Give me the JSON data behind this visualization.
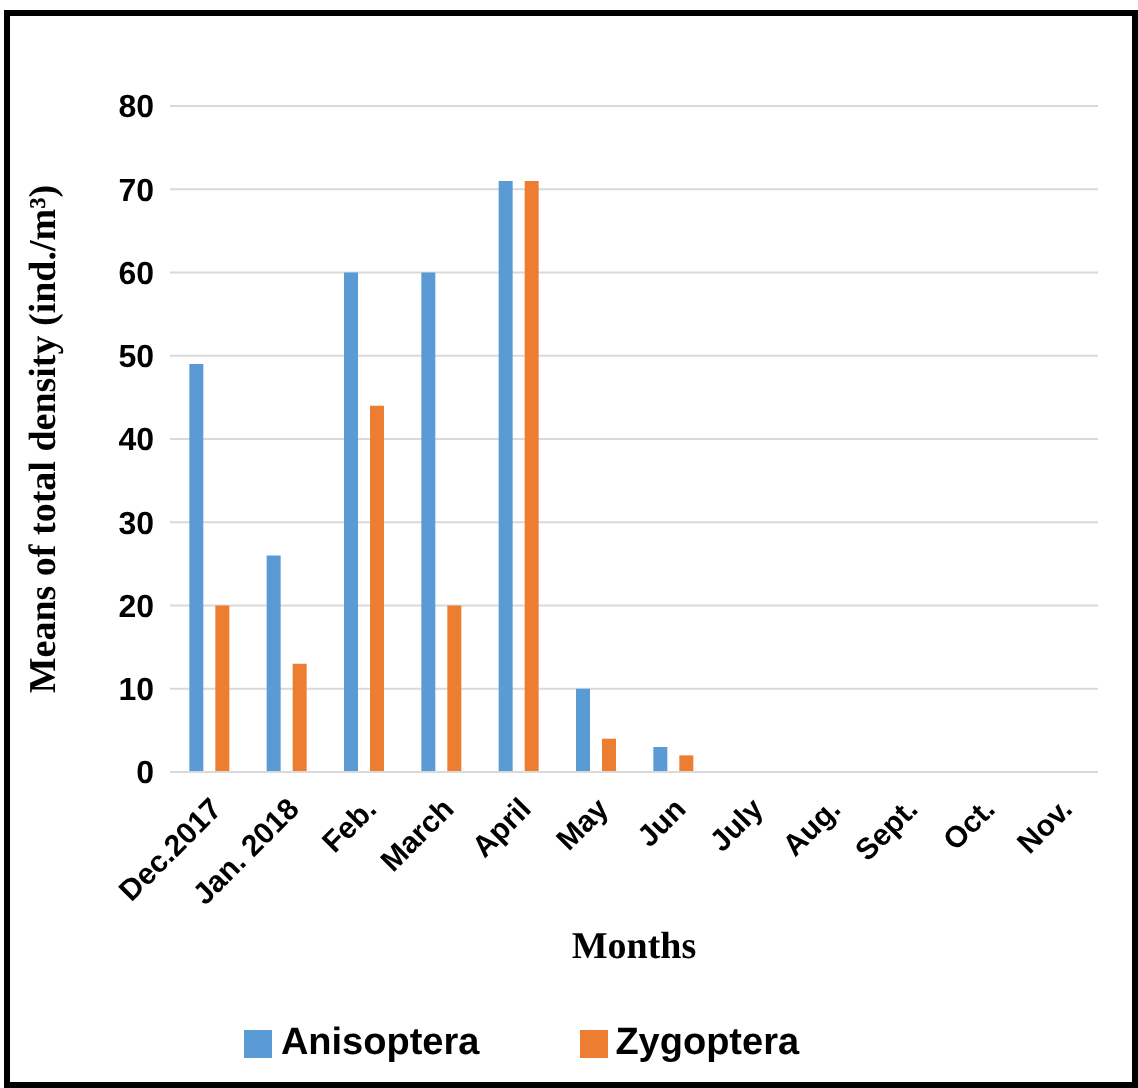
{
  "chart_data": {
    "type": "bar",
    "xlabel": "Months",
    "ylabel": "Means of total density (ind./m³)",
    "categories": [
      "Dec.2017",
      "Jan. 2018",
      "Feb.",
      "March",
      "April",
      "May",
      "Jun",
      "July",
      "Aug.",
      "Sept.",
      "Oct.",
      "Nov."
    ],
    "series": [
      {
        "name": "Anisoptera",
        "color": "#5b9bd5",
        "values": [
          49,
          26,
          60,
          60,
          71,
          10,
          3,
          0,
          0,
          0,
          0,
          0
        ]
      },
      {
        "name": "Zygoptera",
        "color": "#ed7d31",
        "values": [
          20,
          13,
          44,
          20,
          71,
          4,
          2,
          0,
          0,
          0,
          0,
          0
        ]
      }
    ],
    "ylim": [
      0,
      80
    ],
    "yticks": [
      0,
      10,
      20,
      30,
      40,
      50,
      60,
      70,
      80
    ],
    "grid": "y",
    "legend": "bottom"
  }
}
